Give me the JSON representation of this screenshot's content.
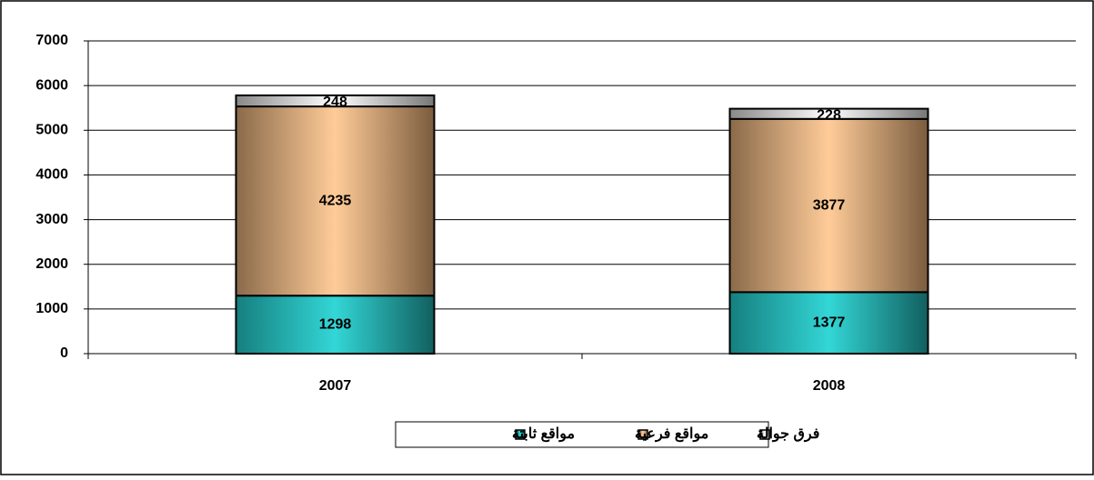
{
  "chart_data": {
    "type": "stacked-bar",
    "categories": [
      "2007",
      "2008"
    ],
    "series": [
      {
        "name": "مواقع ثابتة",
        "color": "#33cccc",
        "values": [
          1298,
          1377
        ]
      },
      {
        "name": "مواقع فرعية",
        "color": "#ffcc99",
        "values": [
          4235,
          3877
        ]
      },
      {
        "name": "فرق جوالة",
        "color": "#ffffff",
        "values": [
          248,
          228
        ]
      }
    ],
    "ylim": [
      0,
      7000
    ],
    "yticks": [
      0,
      1000,
      2000,
      3000,
      4000,
      5000,
      6000,
      7000
    ],
    "grid": true,
    "legend": "bottom"
  }
}
